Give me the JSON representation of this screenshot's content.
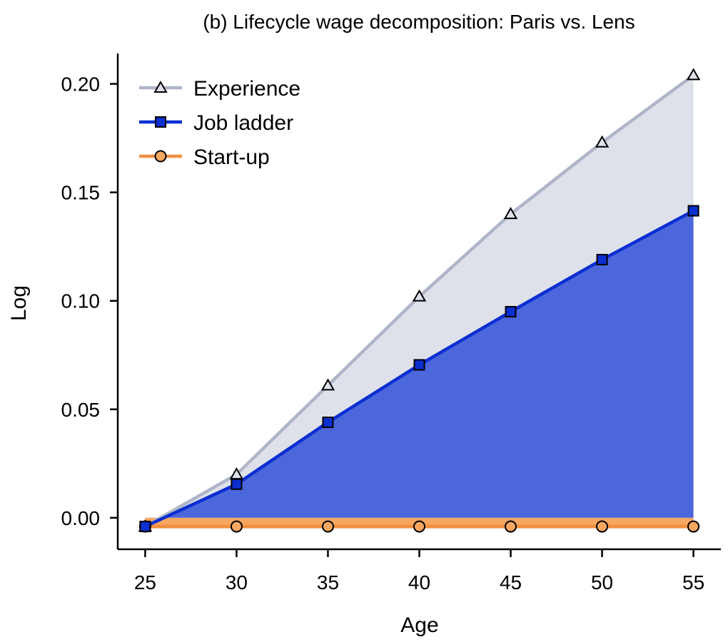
{
  "chart_data": {
    "type": "area",
    "title": "(b) Lifecycle wage decomposition: Paris vs. Lens",
    "xlabel": "Age",
    "ylabel": "Log",
    "x": [
      25,
      30,
      35,
      40,
      45,
      50,
      55
    ],
    "xlim": [
      23.5,
      56.5
    ],
    "ylim": [
      -0.0145,
      0.214
    ],
    "xticks": [
      25,
      30,
      35,
      40,
      45,
      50,
      55
    ],
    "xtick_labels": [
      "25",
      "30",
      "35",
      "40",
      "45",
      "50",
      "55"
    ],
    "yticks": [
      0.0,
      0.05,
      0.1,
      0.15,
      0.2
    ],
    "ytick_labels": [
      "0.00",
      "0.05",
      "0.10",
      "0.15",
      "0.20"
    ],
    "grid": false,
    "legend_position": "top-left",
    "series": [
      {
        "name": "Experience",
        "values": [
          -0.004,
          0.02,
          0.061,
          0.102,
          0.14,
          0.173,
          0.204
        ],
        "color": "#aeb5c9",
        "fill": "#dfe1ea",
        "marker": "triangle"
      },
      {
        "name": "Job ladder",
        "values": [
          -0.004,
          0.0155,
          0.044,
          0.0705,
          0.095,
          0.119,
          0.1415
        ],
        "color": "#0b2fd1",
        "fill": "#4c66dc",
        "marker": "square"
      },
      {
        "name": "Start-up",
        "values": [
          -0.004,
          -0.004,
          -0.004,
          -0.004,
          -0.004,
          -0.004,
          -0.004
        ],
        "color": "#f29040",
        "fill": "#f7a760",
        "marker": "circle"
      }
    ]
  }
}
